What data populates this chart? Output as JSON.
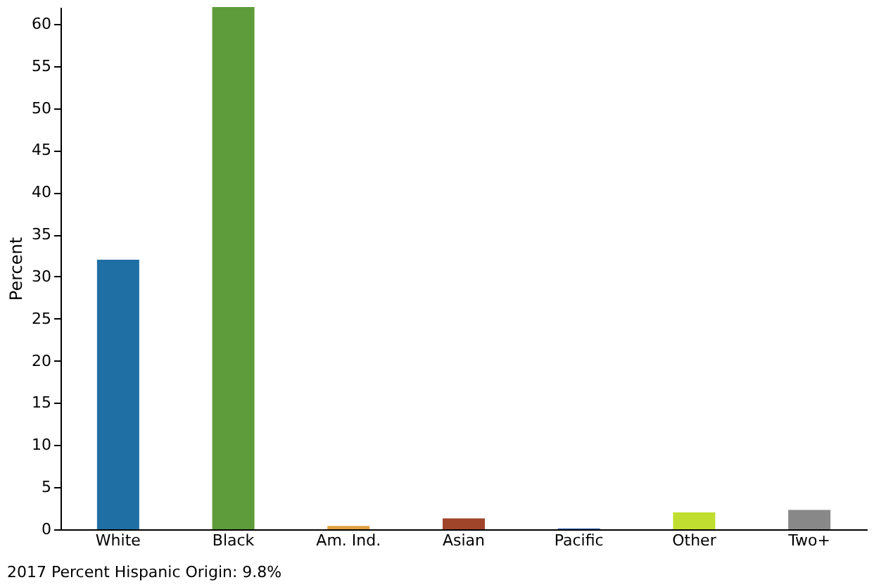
{
  "chart_data": {
    "type": "bar",
    "ylabel": "Percent",
    "categories": [
      "White",
      "Black",
      "Am. Ind.",
      "Asian",
      "Pacific",
      "Other",
      "Two+"
    ],
    "values": [
      32,
      62,
      0.4,
      1.3,
      0.1,
      2,
      2.3
    ],
    "colors": [
      "#1f6fa5",
      "#5e9b3a",
      "#e0a040",
      "#a0452a",
      "#3a6fbf",
      "#c0de30",
      "#888888"
    ],
    "ylim": [
      0,
      62
    ],
    "yticks": [
      0,
      5,
      10,
      15,
      20,
      25,
      30,
      35,
      40,
      45,
      50,
      55,
      60
    ],
    "grid": false,
    "annotations": [
      "2017 Percent Hispanic Origin: 9.8%"
    ]
  }
}
